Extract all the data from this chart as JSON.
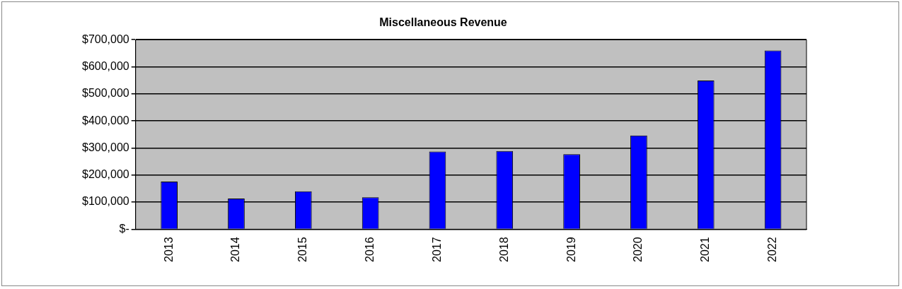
{
  "chart_data": {
    "type": "bar",
    "title": "Miscellaneous Revenue",
    "categories": [
      "2013",
      "2014",
      "2015",
      "2016",
      "2017",
      "2018",
      "2019",
      "2020",
      "2021",
      "2022"
    ],
    "values": [
      176000,
      113000,
      140000,
      118000,
      287000,
      289000,
      277000,
      346000,
      549000,
      660000
    ],
    "color": "#0000ff",
    "ylim": [
      0,
      700000
    ],
    "yticks": [
      {
        "value": 0,
        "label": "$-"
      },
      {
        "value": 100000,
        "label": "$100,000"
      },
      {
        "value": 200000,
        "label": "$200,000"
      },
      {
        "value": 300000,
        "label": "$300,000"
      },
      {
        "value": 400000,
        "label": "$400,000"
      },
      {
        "value": 500000,
        "label": "$500,000"
      },
      {
        "value": 600000,
        "label": "$600,000"
      },
      {
        "value": 700000,
        "label": "$700,000"
      }
    ],
    "grid": "y",
    "legend": false
  }
}
